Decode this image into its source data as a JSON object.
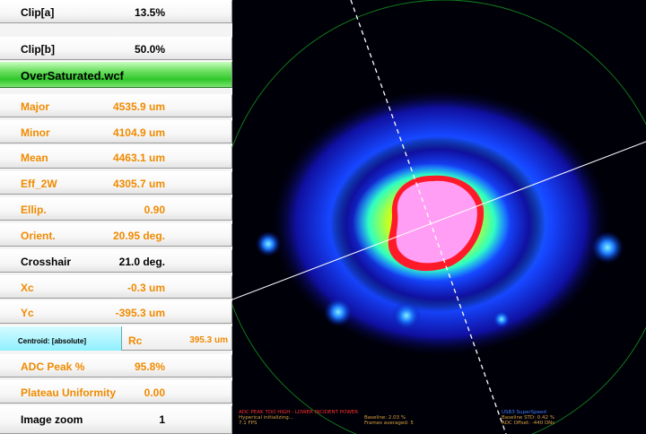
{
  "panel": {
    "clip_a": {
      "label": "Clip[a]",
      "value": "13.5%"
    },
    "clip_b": {
      "label": "Clip[b]",
      "value": "50.0%"
    },
    "file_name": "OverSaturated.wcf",
    "major": {
      "label": "Major",
      "value": "4535.9 um"
    },
    "minor": {
      "label": "Minor",
      "value": "4104.9 um"
    },
    "mean": {
      "label": "Mean",
      "value": "4463.1 um"
    },
    "eff_2w": {
      "label": "Eff_2W",
      "value": "4305.7 um"
    },
    "ellip": {
      "label": "Ellip.",
      "value": "0.90"
    },
    "orient": {
      "label": "Orient.",
      "value": "20.95 deg."
    },
    "crosshair": {
      "label": "Crosshair",
      "value": "21.0 deg."
    },
    "xc": {
      "label": "Xc",
      "value": "-0.3 um"
    },
    "yc": {
      "label": "Yc",
      "value": "-395.3 um"
    },
    "centroid": {
      "label": "Centroid: [absolute]",
      "rc_label": "Rc",
      "rc_value": "395.3 um"
    },
    "adc_peak": {
      "label": "ADC Peak %",
      "value": "95.8%"
    },
    "plateau": {
      "label": "Plateau Uniformity",
      "value": "0.00"
    },
    "zoom": {
      "label": "Image zoom",
      "value": "1"
    }
  },
  "status": {
    "warning": "ADC PEAK TOO HIGH - LOWER INCIDENT POWER",
    "init": "Hyperical initializing...",
    "fps": "7.1 FPS",
    "baseline": "Baseline: 2.03 %",
    "frames": "Frames averaged: 5",
    "connection": "USB3 SuperSpeed",
    "baseline_std": "Baseline STD:  0.42 %",
    "adc_offset": "ADC Offset: -440 DNs"
  },
  "colors": {
    "orange_text": "#f08a00",
    "file_row": "#2fc82a",
    "centroid_row": "#8ff0ff",
    "warning": "#ff3030",
    "status_yellow": "#d8a040",
    "status_blue": "#3a7cff"
  },
  "icons": {
    "beam": "beam-profile-image",
    "crosshair": "crosshair-lines"
  }
}
